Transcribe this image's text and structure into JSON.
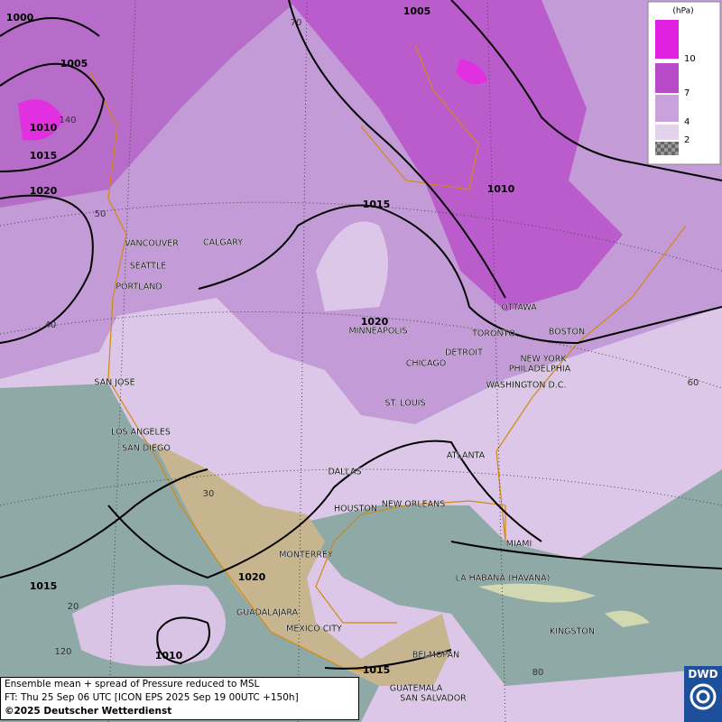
{
  "legend": {
    "unit": "(hPa)",
    "levels": [
      {
        "value": 10,
        "color": "#e020e0"
      },
      {
        "value": 7,
        "color": "#b84cc8"
      },
      {
        "value": 4,
        "color": "#c9a2dc"
      },
      {
        "value": 2,
        "color": "#e2d2ea"
      }
    ]
  },
  "isobar_labels": [
    1000,
    1005,
    1010,
    1015,
    1020,
    1005,
    1010,
    1015,
    1020,
    1020,
    1015,
    1010,
    1015
  ],
  "grid_labels": [
    70,
    50,
    40,
    30,
    20,
    60,
    80,
    120,
    140
  ],
  "cities": [
    "VANCOUVER",
    "CALGARY",
    "SEATTLE",
    "PORTLAND",
    "MINNEAPOLIS",
    "TORONTO",
    "OTTAWA",
    "BOSTON",
    "DETROIT",
    "CHICAGO",
    "NEW YORK",
    "PHILADELPHIA",
    "WASHINGTON D.C.",
    "SAN JOSE",
    "ST. LOUIS",
    "LOS ANGELES",
    "SAN DIEGO",
    "ATLANTA",
    "DALLAS",
    "NEW ORLEANS",
    "HOUSTON",
    "MIAMI",
    "MONTERREY",
    "LA HABANA (HAVANA)",
    "GUADALAJARA",
    "MEXICO CITY",
    "KINGSTON",
    "BELMOPAN",
    "GUATEMALA",
    "SAN SALVADOR"
  ],
  "footer": {
    "line1": "Ensemble mean + spread of Pressure reduced to MSL",
    "line2": "FT: Thu 25 Sep 06 UTC [ICON EPS 2025 Sep 19 00UTC +150h]",
    "copyright": "©2025 Deutscher Wetterdienst"
  },
  "logo": "DWD"
}
